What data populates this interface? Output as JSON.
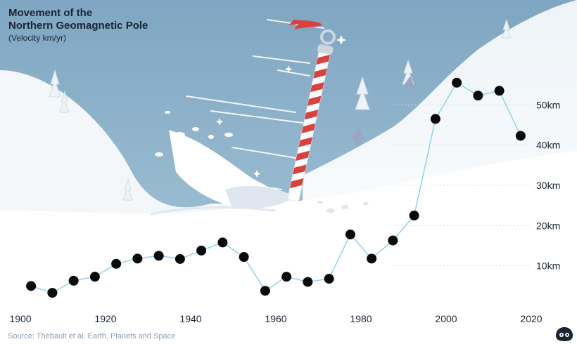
{
  "title_line1": "Movement of the",
  "title_line2": "Northern Geomagnetic Pole",
  "subtitle": "(Velocity km/yr)",
  "source": "Source: Thébault et al. Earth, Planets and Space",
  "colors": {
    "sky": "#8fb3cc",
    "snow": "#ffffff",
    "line": "#8fd3ec",
    "dot": "#0a0a0a",
    "text": "#1a2433",
    "pole_red": "#d9413a"
  },
  "chart_data": {
    "type": "scatter",
    "title": "Movement of the Northern Geomagnetic Pole",
    "subtitle": "(Velocity km/yr)",
    "xlim": [
      1900,
      2020
    ],
    "ylim": [
      0,
      60
    ],
    "x_ticks": [
      1900,
      1920,
      1940,
      1960,
      1980,
      2000,
      2020
    ],
    "x_tick_labels": [
      "1900",
      "1920",
      "1940",
      "1960",
      "1980",
      "2000",
      "2020"
    ],
    "y_ticks": [
      10,
      20,
      30,
      40,
      50
    ],
    "y_tick_labels": [
      "10km",
      "20km",
      "30km",
      "40km",
      "50km"
    ],
    "series": [
      {
        "x": [
          1902.5,
          1907.5,
          1912.5,
          1917.5,
          1922.5,
          1927.5,
          1932.5,
          1937.5,
          1942.5,
          1947.5,
          1952.5,
          1957.5,
          1962.5,
          1967.5,
          1972.5,
          1977.5,
          1982.5,
          1987.5,
          1992.5,
          1997.5,
          2002.5,
          2007.5,
          2012.5,
          2017.5
        ],
        "y": [
          5,
          3.3,
          6.3,
          7.3,
          10.5,
          11.8,
          12.5,
          11.7,
          13.8,
          15.8,
          12.2,
          3.8,
          7.3,
          6.0,
          6.8,
          17.8,
          11.8,
          16.3,
          22.5,
          46.5,
          55.5,
          52.3,
          53.5,
          42.3
        ]
      }
    ]
  }
}
